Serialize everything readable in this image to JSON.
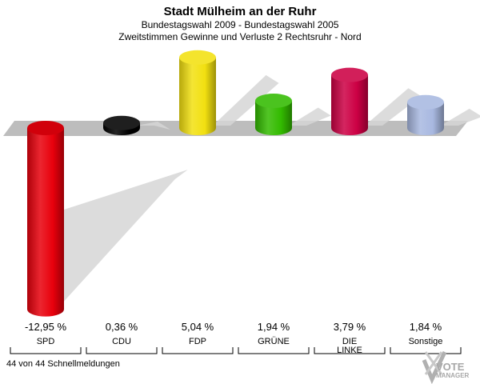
{
  "header": {
    "title": "Stadt Mülheim an der Ruhr",
    "subtitle1": "Bundestagswahl 2009 - Bundestagswahl 2005",
    "subtitle2": "Zweitstimmen Gewinne und Verluste 2 Rechtsruhr - Nord"
  },
  "footer": {
    "reports": "44 von 44 Schnellmeldungen"
  },
  "logo": {
    "line1": "VOTE",
    "line2": "MANAGER"
  },
  "chart_data": {
    "type": "bar",
    "title": "Stadt Mülheim an der Ruhr",
    "subtitle": "Bundestagswahl 2009 - Bundestagswahl 2005 / Zweitstimmen Gewinne und Verluste 2 Rechtsruhr - Nord",
    "categories": [
      "SPD",
      "CDU",
      "FDP",
      "GRÜNE",
      "DIE LINKE",
      "Sonstige"
    ],
    "category_lines": [
      [
        "SPD"
      ],
      [
        "CDU"
      ],
      [
        "FDP"
      ],
      [
        "GRÜNE"
      ],
      [
        "DIE",
        "LINKE"
      ],
      [
        "Sonstige"
      ]
    ],
    "values": [
      -12.95,
      0.36,
      5.04,
      1.94,
      3.79,
      1.84
    ],
    "value_labels": [
      "-12,95 %",
      "0,36 %",
      "5,04 %",
      "1,94 %",
      "3,79 %",
      "1,84 %"
    ],
    "colors": [
      "#e8000c",
      "#000000",
      "#f2e010",
      "#33bb00",
      "#cc0044",
      "#a8b8e0"
    ],
    "unit": "%",
    "ylim": [
      -13.5,
      5.5
    ],
    "xlabel": "",
    "ylabel": ""
  }
}
